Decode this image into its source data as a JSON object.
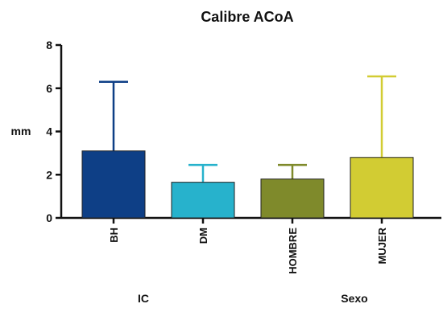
{
  "chart_data": {
    "type": "bar",
    "title": "Calibre ACoA",
    "ylabel": "mm",
    "ylim": [
      0,
      8
    ],
    "yticks": [
      0,
      2,
      4,
      6,
      8
    ],
    "categories": [
      "BH",
      "DM",
      "HOMBRE",
      "MUJER"
    ],
    "values": [
      3.1,
      1.65,
      1.8,
      2.8
    ],
    "error_upper": [
      6.3,
      2.45,
      2.45,
      6.55
    ],
    "colors": [
      "#0e3f86",
      "#27b2cc",
      "#7f8a2b",
      "#d2cc33"
    ],
    "groups": [
      {
        "label": "IC",
        "categories": [
          "BH",
          "DM"
        ]
      },
      {
        "label": "Sexo",
        "categories": [
          "HOMBRE",
          "MUJER"
        ]
      }
    ],
    "grid": false
  }
}
